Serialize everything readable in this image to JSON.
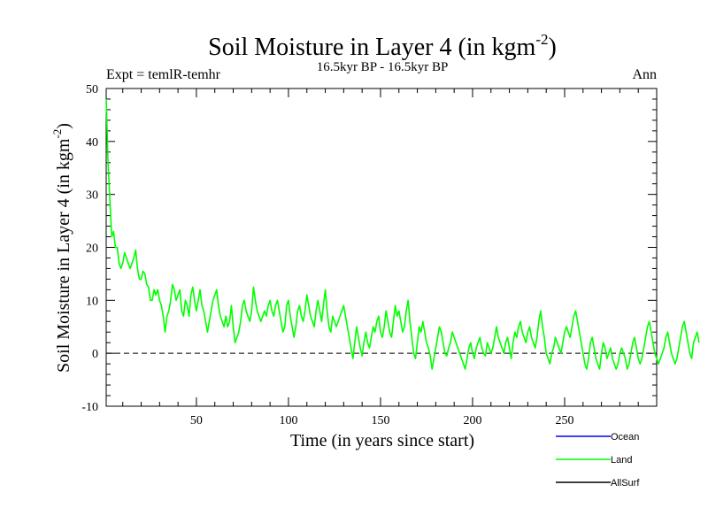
{
  "chart_data": {
    "type": "line",
    "title": "Soil Moisture in Layer 4 (in kgm",
    "title_sup": "-2",
    "title_close": ")",
    "subtitle": "16.5kyr BP - 16.5kyr BP",
    "left_label": "Expt = temlR-temhr",
    "right_label": "Ann",
    "xlabel": "Time (in years since start)",
    "ylabel": "Soil Moisture in Layer 4 (in kgm",
    "ylabel_sup": "-2",
    "ylabel_close": ")",
    "xlim": [
      1,
      300
    ],
    "ylim": [
      -10,
      50
    ],
    "xticks": [
      50,
      100,
      150,
      200,
      250
    ],
    "xtick_labels": [
      "50",
      "100",
      "150",
      "200",
      "250"
    ],
    "yticks": [
      -10,
      0,
      10,
      20,
      30,
      40,
      50
    ],
    "ytick_labels": [
      "-10",
      "0",
      "10",
      "20",
      "30",
      "40",
      "50"
    ],
    "reference_line": 0,
    "legend": [
      {
        "name": "Ocean",
        "color": "#0000ff"
      },
      {
        "name": "Land",
        "color": "#00ff00"
      },
      {
        "name": "AllSurf",
        "color": "#000000"
      }
    ],
    "series": [
      {
        "name": "Land",
        "color": "#00ff00",
        "x_start": 1,
        "x_step": 1,
        "values": [
          48,
          36,
          29,
          22,
          23,
          20,
          20,
          17,
          16,
          17,
          19,
          18,
          17,
          16,
          17,
          18,
          19.5,
          16,
          14,
          14,
          15.5,
          15,
          13,
          12.5,
          10,
          10,
          12,
          11,
          12,
          10,
          9,
          7,
          4,
          7,
          8,
          10,
          13,
          12,
          10,
          11,
          12,
          8,
          7,
          10,
          9,
          7,
          11,
          12.5,
          10,
          8,
          10,
          12,
          9,
          8,
          6,
          4,
          6,
          8,
          10,
          11,
          12,
          9,
          7,
          6,
          5,
          7,
          5,
          6,
          9,
          5,
          2,
          3,
          4,
          6,
          9,
          10,
          8,
          7,
          6,
          8,
          12.5,
          10,
          8,
          7,
          6,
          7,
          8,
          7,
          9,
          10,
          8,
          7,
          9,
          10,
          8,
          6,
          4,
          5,
          9,
          10,
          7,
          5,
          3,
          5,
          8,
          9,
          7,
          6,
          8,
          11,
          9,
          7,
          6,
          5,
          8,
          10,
          8,
          6,
          9,
          12,
          8,
          5,
          4,
          7,
          6,
          5,
          6,
          7,
          8,
          9,
          7,
          5,
          3,
          1,
          -1,
          2,
          5,
          3,
          1,
          -0.5,
          2,
          4,
          2,
          1,
          3,
          5,
          4,
          6,
          7,
          4,
          3,
          5,
          8,
          6,
          4,
          3,
          6,
          9,
          7,
          8,
          6,
          4,
          5,
          8,
          10,
          6,
          3,
          0,
          -1,
          2,
          5,
          4,
          6,
          4,
          2,
          1,
          -0.5,
          -3,
          -1,
          1,
          3,
          5,
          4,
          2,
          0,
          -0.5,
          1,
          2,
          4,
          3,
          2,
          1,
          0,
          -1,
          -2,
          -3,
          -1,
          1,
          2,
          0,
          -1,
          1,
          2,
          3,
          1,
          0,
          -0.5,
          2,
          1,
          0,
          1,
          3,
          5,
          3,
          2,
          1,
          0,
          2,
          3,
          1,
          -1,
          2,
          4,
          3,
          5,
          6,
          4,
          3,
          2,
          4,
          5,
          3,
          2,
          1,
          3,
          6,
          8,
          5,
          3,
          0,
          -1,
          -2,
          0,
          1,
          3,
          2,
          1,
          0,
          2,
          4,
          5,
          4,
          3,
          5,
          7,
          8,
          6,
          4,
          2,
          0,
          -2,
          -3,
          -1,
          2,
          3,
          1,
          -1,
          -2,
          -3,
          0,
          2,
          1,
          -1,
          0,
          1,
          -1,
          -2,
          -3,
          -2,
          0,
          1,
          0,
          -1,
          -3,
          -2,
          0,
          2,
          3,
          1,
          -1,
          -2,
          -1,
          1,
          3,
          5,
          6,
          4,
          2,
          0,
          -1,
          -2,
          -1,
          0,
          1,
          3,
          4,
          2,
          0,
          -1,
          -2,
          -1,
          1,
          3,
          5,
          6,
          4,
          2,
          0,
          -1,
          2,
          3,
          4,
          2
        ]
      }
    ]
  }
}
